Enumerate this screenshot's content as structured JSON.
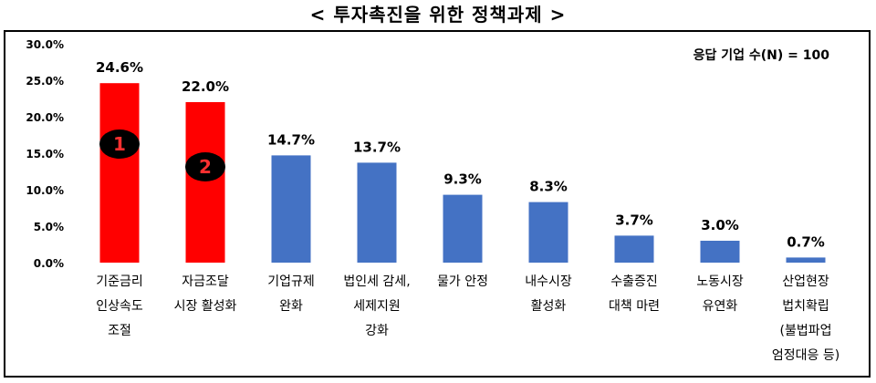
{
  "chart_data": {
    "type": "bar",
    "title": "< 투자촉진을 위한 정책과제 >",
    "annotation": "응답 기업 수(N) = 100",
    "categories": [
      "기준금리\n인상속도\n조절",
      "자금조달\n시장 활성화",
      "기업규제\n완화",
      "법인세 감세,\n세제지원\n강화",
      "물가 안정",
      "내수시장\n활성화",
      "수출증진\n대책 마련",
      "노동시장\n유연화",
      "산업현장\n법치확립\n(불법파업\n엄정대응 등)"
    ],
    "values": [
      24.6,
      22.0,
      14.7,
      13.7,
      9.3,
      8.3,
      3.7,
      3.0,
      0.7
    ],
    "value_labels": [
      "24.6%",
      "22.0%",
      "14.7%",
      "13.7%",
      "9.3%",
      "8.3%",
      "3.7%",
      "3.0%",
      "0.7%"
    ],
    "bar_colors": [
      "#ff0000",
      "#ff0000",
      "#4472c4",
      "#4472c4",
      "#4472c4",
      "#4472c4",
      "#4472c4",
      "#4472c4",
      "#4472c4"
    ],
    "rank_markers": [
      "1",
      "2"
    ],
    "yticks": [
      "0.0%",
      "5.0%",
      "10.0%",
      "15.0%",
      "20.0%",
      "25.0%",
      "30.0%"
    ],
    "ylim": [
      0,
      30
    ],
    "grid": false,
    "xlabel": "",
    "ylabel": ""
  }
}
